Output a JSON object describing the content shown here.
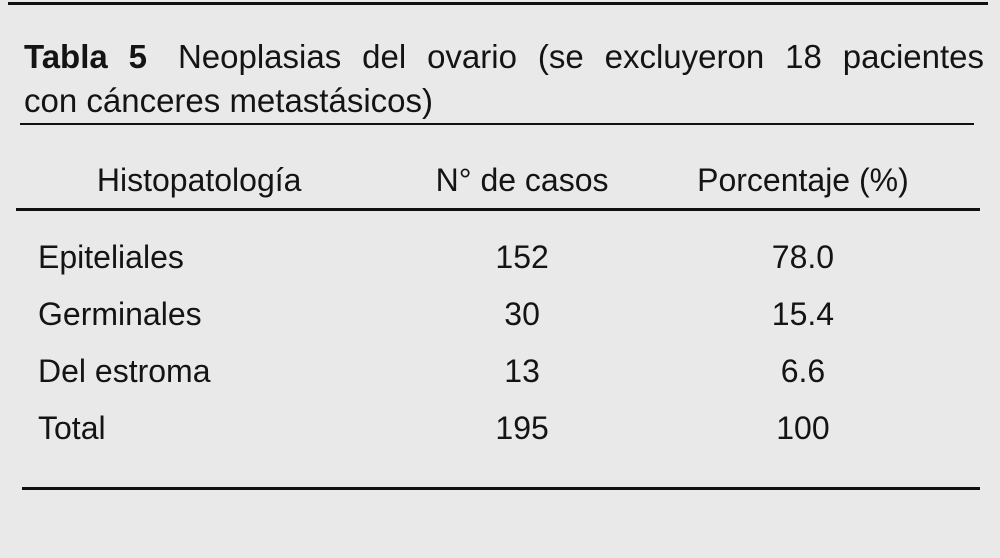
{
  "page": {
    "background_color": "#e9e9e9",
    "text_color": "#141414",
    "rule_color": "#111111"
  },
  "table": {
    "label": "Tabla 5",
    "title_line1": "Neoplasias del ovario (se excluyeron 18 pacientes",
    "title_line2": "con cánceres metastásicos)",
    "columns": [
      "Histopatología",
      "N° de casos",
      "Porcentaje (%)"
    ],
    "rows": [
      {
        "histopathology": "Epiteliales",
        "cases": "152",
        "percentage": "78.0"
      },
      {
        "histopathology": "Germinales",
        "cases": "30",
        "percentage": "15.4"
      },
      {
        "histopathology": "Del estroma",
        "cases": "13",
        "percentage": "6.6"
      },
      {
        "histopathology": "Total",
        "cases": "195",
        "percentage": "100"
      }
    ]
  },
  "chart_data": {
    "type": "table",
    "title": "Tabla 5 Neoplasias del ovario (se excluyeron 18 pacientes con cánceres metastásicos)",
    "columns": [
      "Histopatología",
      "N° de casos",
      "Porcentaje (%)"
    ],
    "rows": [
      [
        "Epiteliales",
        152,
        78.0
      ],
      [
        "Germinales",
        30,
        15.4
      ],
      [
        "Del estroma",
        13,
        6.6
      ],
      [
        "Total",
        195,
        100
      ]
    ]
  }
}
